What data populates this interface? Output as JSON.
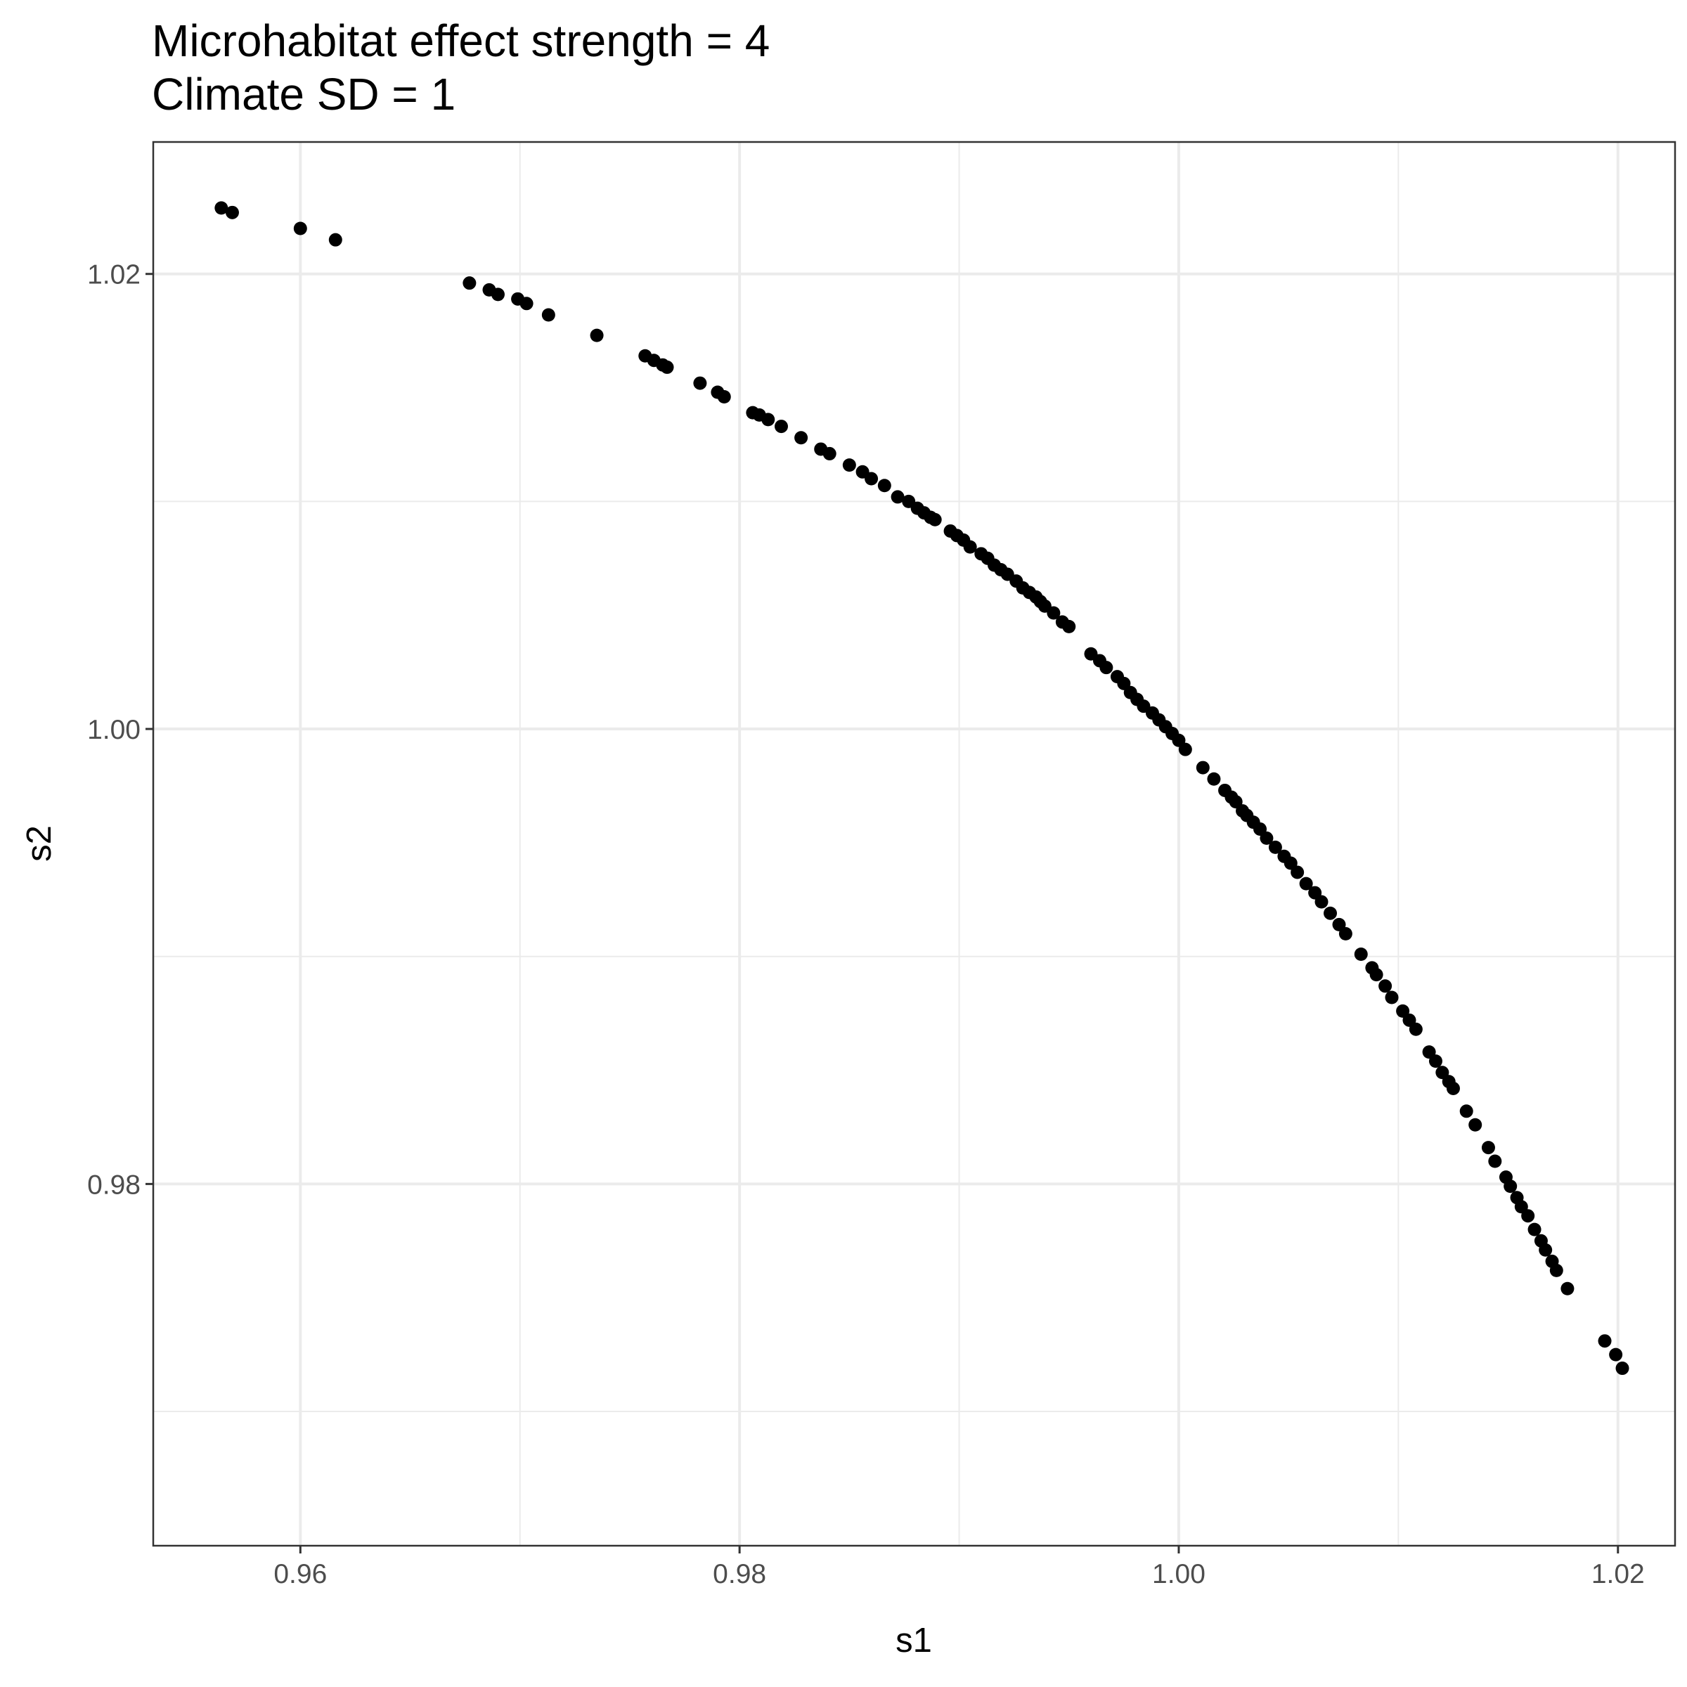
{
  "chart_data": {
    "type": "scatter",
    "title": [
      "Microhabitat effect strength = 4",
      "Climate SD = 1"
    ],
    "xlabel": "s1",
    "ylabel": "s2",
    "xlim": [
      0.9533,
      1.0226
    ],
    "ylim": [
      0.9641,
      1.0258
    ],
    "x_major_ticks": [
      0.96,
      0.98,
      1.0,
      1.02
    ],
    "x_tick_labels": [
      "0.96",
      "0.98",
      "1.00",
      "1.02"
    ],
    "y_major_ticks": [
      0.98,
      1.0,
      1.02
    ],
    "y_tick_labels": [
      "0.98",
      "1.00",
      "1.02"
    ],
    "x_minor_ticks": [
      0.97,
      0.99,
      1.01
    ],
    "y_minor_ticks": [
      0.97,
      0.99,
      1.01
    ],
    "grid": true,
    "legend": "none",
    "colors": {
      "points": "#000000",
      "grid": "#ebebeb",
      "border": "#333333"
    },
    "points": [
      [
        0.9564,
        1.0229
      ],
      [
        0.9569,
        1.0227
      ],
      [
        0.96,
        1.022
      ],
      [
        0.9616,
        1.0215
      ],
      [
        0.9677,
        1.0196
      ],
      [
        0.9686,
        1.0193
      ],
      [
        0.969,
        1.0191
      ],
      [
        0.9699,
        1.0189
      ],
      [
        0.9703,
        1.0187
      ],
      [
        0.9713,
        1.0182
      ],
      [
        0.9735,
        1.0173
      ],
      [
        0.9757,
        1.0164
      ],
      [
        0.9761,
        1.0162
      ],
      [
        0.9765,
        1.016
      ],
      [
        0.9767,
        1.0159
      ],
      [
        0.9782,
        1.0152
      ],
      [
        0.979,
        1.0148
      ],
      [
        0.9793,
        1.0146
      ],
      [
        0.9806,
        1.0139
      ],
      [
        0.9809,
        1.0138
      ],
      [
        0.9813,
        1.0136
      ],
      [
        0.9819,
        1.0133
      ],
      [
        0.9828,
        1.0128
      ],
      [
        0.9837,
        1.0123
      ],
      [
        0.9841,
        1.0121
      ],
      [
        0.985,
        1.0116
      ],
      [
        0.9856,
        1.0113
      ],
      [
        0.986,
        1.011
      ],
      [
        0.9866,
        1.0107
      ],
      [
        0.9872,
        1.0102
      ],
      [
        0.9877,
        1.01
      ],
      [
        0.9881,
        1.0097
      ],
      [
        0.9884,
        1.0095
      ],
      [
        0.9887,
        1.0093
      ],
      [
        0.9889,
        1.0092
      ],
      [
        0.9896,
        1.0087
      ],
      [
        0.9899,
        1.0085
      ],
      [
        0.9902,
        1.0083
      ],
      [
        0.9905,
        1.008
      ],
      [
        0.991,
        1.0077
      ],
      [
        0.9913,
        1.0075
      ],
      [
        0.9916,
        1.0072
      ],
      [
        0.9919,
        1.007
      ],
      [
        0.9922,
        1.0068
      ],
      [
        0.9926,
        1.0065
      ],
      [
        0.9929,
        1.0062
      ],
      [
        0.9932,
        1.006
      ],
      [
        0.9935,
        1.0058
      ],
      [
        0.9937,
        1.0056
      ],
      [
        0.9939,
        1.0054
      ],
      [
        0.9943,
        1.0051
      ],
      [
        0.9947,
        1.0047
      ],
      [
        0.995,
        1.0045
      ],
      [
        0.996,
        1.0033
      ],
      [
        0.9964,
        1.003
      ],
      [
        0.9967,
        1.0027
      ],
      [
        0.9972,
        1.0023
      ],
      [
        0.9975,
        1.002
      ],
      [
        0.9978,
        1.0016
      ],
      [
        0.9981,
        1.0013
      ],
      [
        0.9984,
        1.001
      ],
      [
        0.9988,
        1.0007
      ],
      [
        0.9991,
        1.0004
      ],
      [
        0.9994,
        1.0001
      ],
      [
        0.9997,
        0.9998
      ],
      [
        1.0,
        0.9995
      ],
      [
        1.0003,
        0.9991
      ],
      [
        1.0011,
        0.9983
      ],
      [
        1.0016,
        0.9978
      ],
      [
        1.0021,
        0.9973
      ],
      [
        1.0024,
        0.997
      ],
      [
        1.0026,
        0.9968
      ],
      [
        1.0029,
        0.9964
      ],
      [
        1.0031,
        0.9962
      ],
      [
        1.0034,
        0.9959
      ],
      [
        1.0037,
        0.9956
      ],
      [
        1.004,
        0.9952
      ],
      [
        1.0044,
        0.9948
      ],
      [
        1.0048,
        0.9944
      ],
      [
        1.0051,
        0.9941
      ],
      [
        1.0054,
        0.9937
      ],
      [
        1.0058,
        0.9932
      ],
      [
        1.0062,
        0.9928
      ],
      [
        1.0065,
        0.9924
      ],
      [
        1.0069,
        0.9919
      ],
      [
        1.0073,
        0.9914
      ],
      [
        1.0076,
        0.991
      ],
      [
        1.0083,
        0.9901
      ],
      [
        1.0088,
        0.9895
      ],
      [
        1.009,
        0.9892
      ],
      [
        1.0094,
        0.9887
      ],
      [
        1.0097,
        0.9882
      ],
      [
        1.0102,
        0.9876
      ],
      [
        1.0105,
        0.9872
      ],
      [
        1.0108,
        0.9868
      ],
      [
        1.0114,
        0.9858
      ],
      [
        1.0117,
        0.9854
      ],
      [
        1.012,
        0.9849
      ],
      [
        1.0123,
        0.9845
      ],
      [
        1.0125,
        0.9842
      ],
      [
        1.0131,
        0.9832
      ],
      [
        1.0135,
        0.9826
      ],
      [
        1.0141,
        0.9816
      ],
      [
        1.0144,
        0.981
      ],
      [
        1.0149,
        0.9803
      ],
      [
        1.0151,
        0.9799
      ],
      [
        1.0154,
        0.9794
      ],
      [
        1.0156,
        0.979
      ],
      [
        1.0159,
        0.9786
      ],
      [
        1.0162,
        0.978
      ],
      [
        1.0165,
        0.9775
      ],
      [
        1.0167,
        0.9771
      ],
      [
        1.017,
        0.9766
      ],
      [
        1.0172,
        0.9762
      ],
      [
        1.0177,
        0.9754
      ],
      [
        1.0194,
        0.9731
      ],
      [
        1.0199,
        0.9725
      ],
      [
        1.0202,
        0.9719
      ]
    ]
  }
}
